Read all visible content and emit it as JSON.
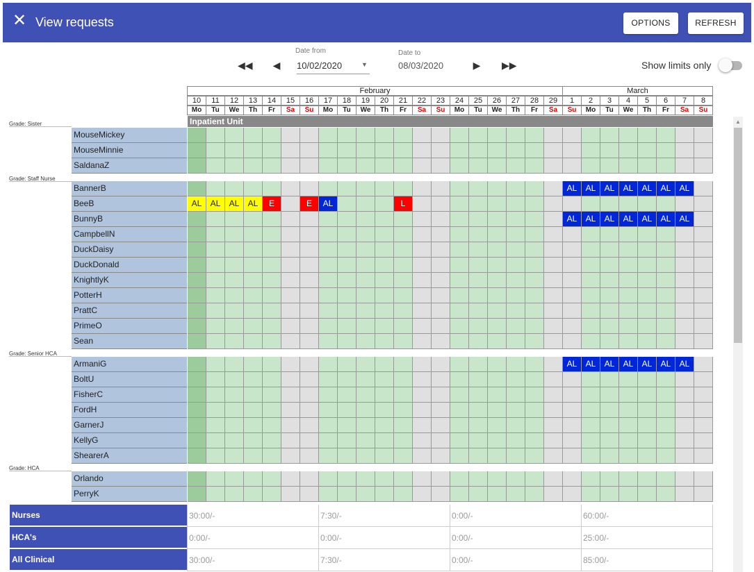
{
  "header": {
    "title": "View requests",
    "options_label": "OPTIONS",
    "refresh_label": "REFRESH"
  },
  "date_from": {
    "label": "Date from",
    "value": "10/02/2020"
  },
  "date_to": {
    "label": "Date to",
    "value": "08/03/2020"
  },
  "show_limits": {
    "label": "Show limits only",
    "checked": false
  },
  "months": [
    "February",
    "March"
  ],
  "days": [
    {
      "d": "10",
      "w": "Mo"
    },
    {
      "d": "11",
      "w": "Tu"
    },
    {
      "d": "12",
      "w": "We"
    },
    {
      "d": "13",
      "w": "Th"
    },
    {
      "d": "14",
      "w": "Fr"
    },
    {
      "d": "15",
      "w": "Sa"
    },
    {
      "d": "16",
      "w": "Su"
    },
    {
      "d": "17",
      "w": "Mo"
    },
    {
      "d": "18",
      "w": "Tu"
    },
    {
      "d": "19",
      "w": "We"
    },
    {
      "d": "20",
      "w": "Th"
    },
    {
      "d": "21",
      "w": "Fr"
    },
    {
      "d": "22",
      "w": "Sa"
    },
    {
      "d": "23",
      "w": "Su"
    },
    {
      "d": "24",
      "w": "Mo"
    },
    {
      "d": "25",
      "w": "Tu"
    },
    {
      "d": "26",
      "w": "We"
    },
    {
      "d": "27",
      "w": "Th"
    },
    {
      "d": "28",
      "w": "Fr"
    },
    {
      "d": "29",
      "w": "Sa"
    },
    {
      "d": "1",
      "w": "Su"
    },
    {
      "d": "2",
      "w": "Mo"
    },
    {
      "d": "3",
      "w": "Tu"
    },
    {
      "d": "4",
      "w": "We"
    },
    {
      "d": "5",
      "w": "Th"
    },
    {
      "d": "6",
      "w": "Fr"
    },
    {
      "d": "7",
      "w": "Sa"
    },
    {
      "d": "8",
      "w": "Su"
    }
  ],
  "unit": "Inpatient Unit",
  "groups": [
    {
      "grade": "Grade: Sister",
      "staff": [
        {
          "name": "MouseMickey",
          "requests": {}
        },
        {
          "name": "MouseMinnie",
          "requests": {}
        },
        {
          "name": "SaldanaZ",
          "requests": {}
        }
      ]
    },
    {
      "grade": "Grade: Staff Nurse",
      "staff": [
        {
          "name": "BannerB",
          "requests": {
            "21": "AL",
            "22": "AL",
            "23": "AL",
            "24": "AL",
            "25": "AL",
            "26": "AL",
            "27": "AL"
          }
        },
        {
          "name": "BeeB",
          "requests": {
            "1": "AL",
            "2": "AL",
            "3": "AL",
            "4": "AL",
            "5": "E",
            "7": "E",
            "8": "AL",
            "12": "L"
          }
        },
        {
          "name": "BunnyB",
          "requests": {
            "21": "AL",
            "22": "AL",
            "23": "AL",
            "24": "AL",
            "25": "AL",
            "26": "AL",
            "27": "AL"
          }
        },
        {
          "name": "CampbellN",
          "requests": {}
        },
        {
          "name": "DuckDaisy",
          "requests": {}
        },
        {
          "name": "DuckDonald",
          "requests": {}
        },
        {
          "name": "KnightlyK",
          "requests": {}
        },
        {
          "name": "PotterH",
          "requests": {}
        },
        {
          "name": "PrattC",
          "requests": {}
        },
        {
          "name": "PrimeO",
          "requests": {}
        },
        {
          "name": "Sean",
          "requests": {}
        }
      ]
    },
    {
      "grade": "Grade: Senior HCA",
      "staff": [
        {
          "name": "ArmaniG",
          "requests": {
            "21": "AL",
            "22": "AL",
            "23": "AL",
            "24": "AL",
            "25": "AL",
            "26": "AL",
            "27": "AL"
          }
        },
        {
          "name": "BoltU",
          "requests": {}
        },
        {
          "name": "FisherC",
          "requests": {}
        },
        {
          "name": "FordH",
          "requests": {}
        },
        {
          "name": "GarnerJ",
          "requests": {}
        },
        {
          "name": "KellyG",
          "requests": {}
        },
        {
          "name": "ShearerA",
          "requests": {}
        }
      ]
    },
    {
      "grade": "Grade: HCA",
      "staff": [
        {
          "name": "Orlando",
          "requests": {}
        },
        {
          "name": "PerryK",
          "requests": {}
        }
      ]
    }
  ],
  "summary": [
    {
      "label": "Nurses",
      "values": [
        "30:00/-",
        "7:30/-",
        "0:00/-",
        "60:00/-"
      ]
    },
    {
      "label": "HCA's",
      "values": [
        "0:00/-",
        "0:00/-",
        "0:00/-",
        "25:00/-"
      ]
    },
    {
      "label": "All Clinical",
      "values": [
        "30:00/-",
        "7:30/-",
        "0:00/-",
        "85:00/-"
      ]
    }
  ],
  "colors": {
    "header": "#3f51b5",
    "AL": "#0026d9",
    "E": "#ff0000",
    "L": "#ff0000",
    "AL_pending": "#ffff00",
    "weekday": "#c8e6c9",
    "weekend": "#e0e0e0",
    "today": "#9ccc9c",
    "name_bg": "#b0c4de"
  },
  "icons": {
    "close": "close-icon",
    "first": "fast-rewind-icon",
    "prev": "prev-icon",
    "next": "next-icon",
    "last": "fast-forward-icon",
    "dropdown": "dropdown-arrow-icon"
  }
}
